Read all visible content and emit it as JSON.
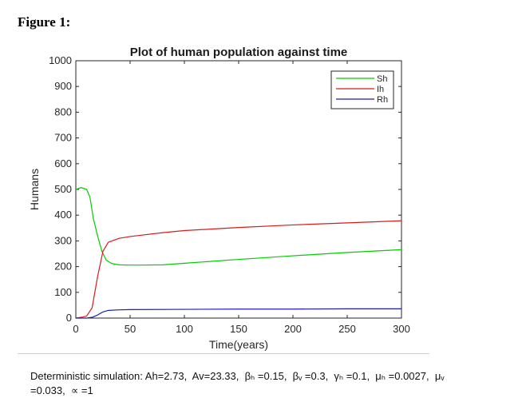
{
  "figure_label": "Figure 1:",
  "caption": "Deterministic simulation: Ah=2.73,  Av=23.33,  βₕ =0.15,  βᵥ =0.3,  γₕ =0.1,  μₕ =0.0027,  μᵥ\n=0.033,  ∝ =1",
  "colors": {
    "Sh": "#00cc00",
    "Ih": "#d81b1b",
    "Rh": "#1c1cb8",
    "axis": "#262626"
  },
  "chart_data": {
    "type": "line",
    "title": "Plot of human population against time",
    "xlabel": "Time(years)",
    "ylabel": "Humans",
    "xlim": [
      0,
      300
    ],
    "ylim": [
      0,
      1000
    ],
    "xticks": [
      0,
      50,
      100,
      150,
      200,
      250,
      300
    ],
    "yticks": [
      0,
      100,
      200,
      300,
      400,
      500,
      600,
      700,
      800,
      900,
      1000
    ],
    "grid": false,
    "legend_position": "top-right",
    "series": [
      {
        "name": "Sh",
        "color": "#00cc00",
        "x": [
          0,
          5,
          10,
          13,
          16,
          20,
          24,
          28,
          33,
          40,
          50,
          60,
          80,
          100,
          150,
          200,
          250,
          300
        ],
        "y": [
          500,
          507,
          500,
          470,
          390,
          320,
          260,
          225,
          212,
          207,
          206,
          206,
          207,
          213,
          228,
          242,
          255,
          266
        ]
      },
      {
        "name": "Ih",
        "color": "#d81b1b",
        "x": [
          0,
          5,
          10,
          15,
          20,
          25,
          30,
          40,
          50,
          60,
          80,
          100,
          150,
          200,
          250,
          300
        ],
        "y": [
          0,
          3,
          8,
          40,
          160,
          260,
          295,
          310,
          317,
          322,
          332,
          340,
          352,
          362,
          370,
          378
        ]
      },
      {
        "name": "Rh",
        "color": "#1c1cb8",
        "x": [
          0,
          10,
          15,
          20,
          25,
          30,
          40,
          50,
          100,
          150,
          200,
          250,
          300
        ],
        "y": [
          0,
          0,
          3,
          12,
          24,
          30,
          32,
          33,
          34,
          35,
          35,
          36,
          36
        ]
      }
    ]
  }
}
